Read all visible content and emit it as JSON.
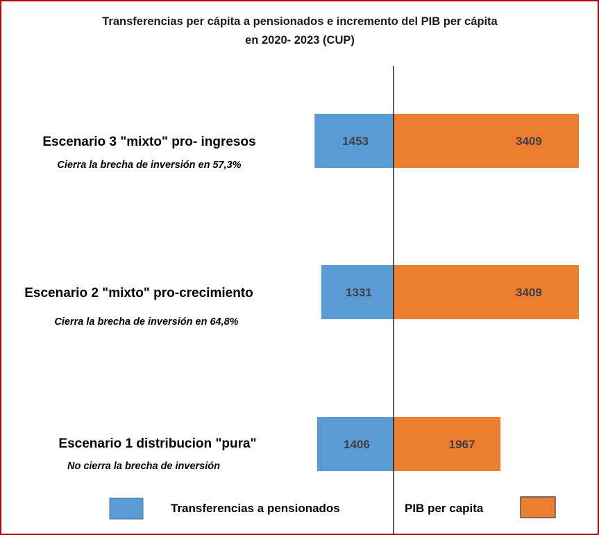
{
  "chart_data": {
    "type": "bar",
    "orientation": "horizontal-diverging",
    "title_lines": [
      "Transferencias per cápita a pensionados  e incremento del PIB per cápita",
      "en 2020- 2023 (CUP)"
    ],
    "categories": [
      {
        "label": "Escenario 3 \"mixto\" pro- ingresos",
        "note": "Cierra la brecha de inversión en 57,3%"
      },
      {
        "label": "Escenario 2 \"mixto\" pro-crecimiento",
        "note": "Cierra la brecha de inversión en 64,8%"
      },
      {
        "label": "Escenario 1 distribucion \"pura\"",
        "note": "No cierra la brecha de inversión"
      }
    ],
    "series": [
      {
        "name": "Transferencias a pensionados",
        "color": "#5b9bd5",
        "direction": "left",
        "values": [
          1453,
          1331,
          1406
        ]
      },
      {
        "name": "PIB per capita",
        "color": "#ed7d31",
        "direction": "right",
        "values": [
          3409,
          3409,
          1967
        ]
      }
    ],
    "xlim": [
      -1453,
      3409
    ],
    "xlabel": "",
    "ylabel": "",
    "legend_position": "bottom"
  }
}
